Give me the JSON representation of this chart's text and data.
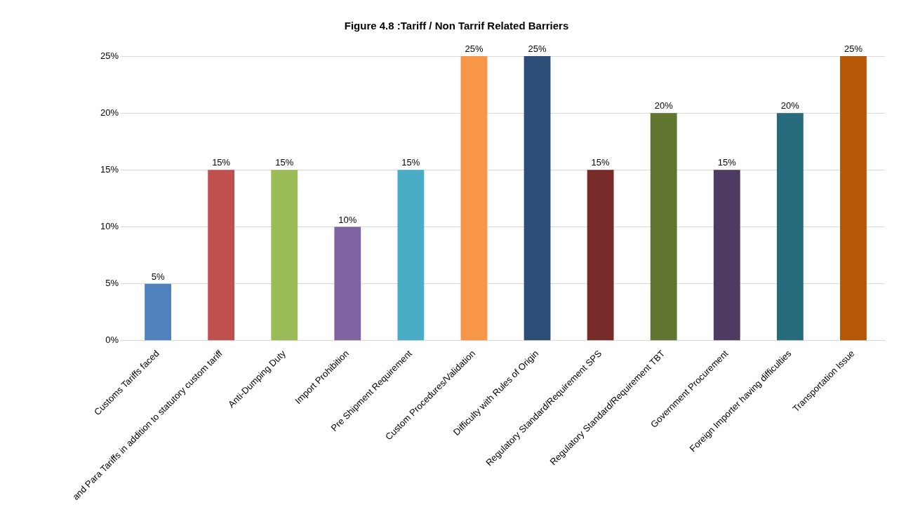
{
  "chart_data": {
    "type": "bar",
    "title": "Figure 4.8 :Tariff / Non Tarrif Related Barriers",
    "categories": [
      "Customs Tariffs faced",
      "and Para Tariffs in addition to statutory custom tariff",
      "Anti-Dumping Duty",
      "Import Prohibition",
      "Pre Shipment Requirement",
      "Custom Procedures/Validation",
      "Difficulty with Rules of Origin",
      "Regulatory Standard/Requirement SPS",
      "Regulatory Standard/Requirement TBT",
      "Government Procurement",
      "Foreign Importer having difficulties",
      "Transportation Issue"
    ],
    "values": [
      5,
      15,
      15,
      10,
      15,
      25,
      25,
      15,
      20,
      15,
      20,
      25
    ],
    "value_labels": [
      "5%",
      "15%",
      "15%",
      "10%",
      "15%",
      "25%",
      "25%",
      "15%",
      "20%",
      "15%",
      "20%",
      "25%"
    ],
    "colors": [
      "#4f81bd",
      "#c0504d",
      "#9bbb59",
      "#8064a2",
      "#4bacc6",
      "#f79646",
      "#2c4d75",
      "#772c2a",
      "#5f7530",
      "#4d3b62",
      "#276a7c",
      "#b65708"
    ],
    "ylim": [
      0,
      25
    ],
    "yticks": [
      {
        "value": 0,
        "label": "0%"
      },
      {
        "value": 5,
        "label": "5%"
      },
      {
        "value": 10,
        "label": "10%"
      },
      {
        "value": 15,
        "label": "15%"
      },
      {
        "value": 20,
        "label": "20%"
      },
      {
        "value": 25,
        "label": "25%"
      }
    ],
    "grid": "y"
  }
}
